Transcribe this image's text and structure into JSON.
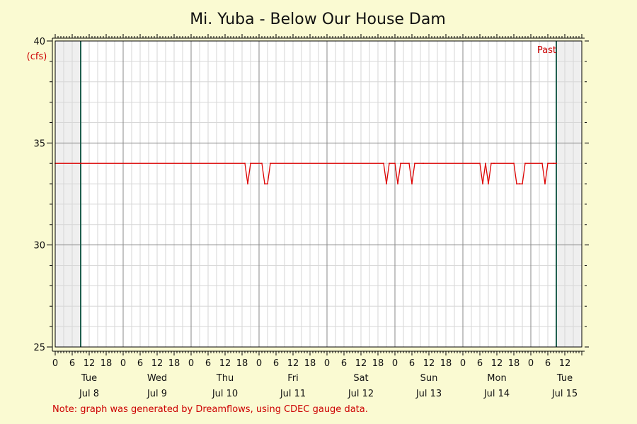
{
  "chart_data": {
    "type": "line",
    "title": "Mi. Yuba - Below Our House Dam",
    "ylabel": "(cfs)",
    "ylim": [
      25,
      40
    ],
    "yticks": [
      25,
      30,
      35,
      40
    ],
    "x_hours_range": [
      0,
      186
    ],
    "x_hour_ticks": [
      "0",
      "6",
      "12",
      "18",
      "0",
      "6",
      "12",
      "18",
      "0",
      "6",
      "12",
      "18",
      "0",
      "6",
      "12",
      "18",
      "0",
      "6",
      "12",
      "18",
      "0",
      "6",
      "12",
      "18",
      "0",
      "6",
      "12",
      "18",
      "0",
      "6",
      "12"
    ],
    "days": [
      {
        "weekday": "Tue",
        "date": "Jul 8"
      },
      {
        "weekday": "Wed",
        "date": "Jul 9"
      },
      {
        "weekday": "Thu",
        "date": "Jul 10"
      },
      {
        "weekday": "Fri",
        "date": "Jul 11"
      },
      {
        "weekday": "Sat",
        "date": "Jul 12"
      },
      {
        "weekday": "Sun",
        "date": "Jul 13"
      },
      {
        "weekday": "Mon",
        "date": "Jul 14"
      },
      {
        "weekday": "Tue",
        "date": "Jul 15"
      }
    ],
    "window_start_hour": 9,
    "window_end_hour": 177,
    "past_label": "Past",
    "series": [
      {
        "color": "#dd0000",
        "x_hours": [
          0,
          67,
          68,
          69,
          73,
          74,
          75,
          76,
          116,
          117,
          118,
          120,
          121,
          122,
          125,
          126,
          127,
          130,
          150,
          151,
          152,
          153,
          154,
          155,
          162,
          163,
          164,
          165,
          166,
          172,
          173,
          174,
          176,
          177
        ],
        "values": [
          34,
          34,
          33,
          34,
          34,
          33,
          33,
          34,
          34,
          33,
          34,
          34,
          33,
          34,
          34,
          33,
          34,
          34,
          34,
          33,
          34,
          33,
          34,
          34,
          34,
          33,
          33,
          33,
          34,
          34,
          33,
          34,
          34,
          34
        ]
      }
    ],
    "grid": true,
    "legend": "none"
  },
  "note": "Note: graph was generated by Dreamflows, using CDEC gauge data."
}
